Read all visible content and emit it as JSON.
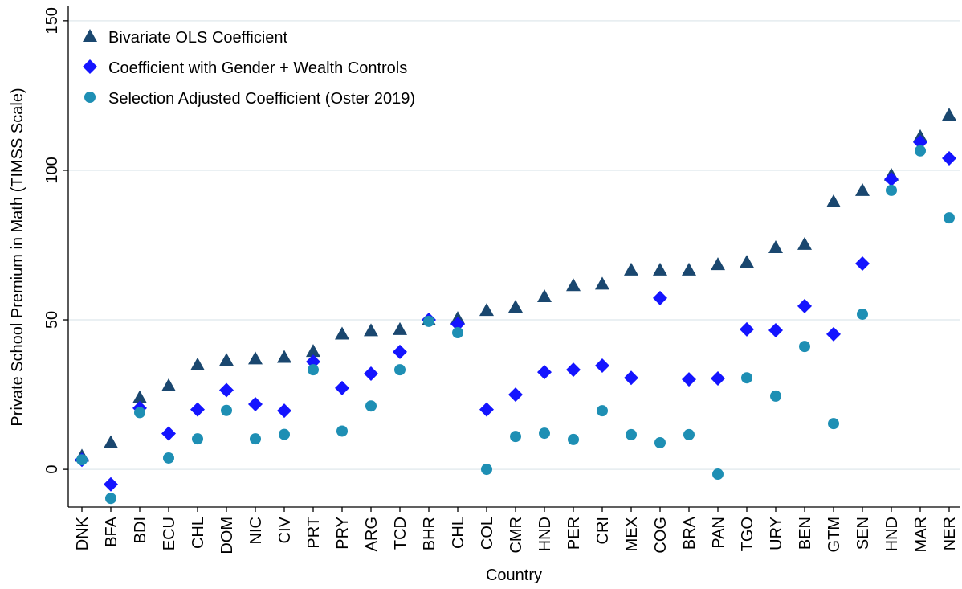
{
  "chart_data": {
    "type": "scatter",
    "x_label": "Country",
    "y_label": "Private School Premium in Math (TIMSS Scale)",
    "categories": [
      "DNK",
      "BFA",
      "BDI",
      "ECU",
      "CHL",
      "DOM",
      "NIC",
      "CIV",
      "PRT",
      "PRY",
      "ARG",
      "TCD",
      "BHR",
      "CHL",
      "COL",
      "CMR",
      "HND",
      "PER",
      "CRI",
      "MEX",
      "COG",
      "BRA",
      "PAN",
      "TGO",
      "URY",
      "BEN",
      "GTM",
      "SEN",
      "HND",
      "MAR",
      "NER"
    ],
    "series": [
      {
        "name": "Bivariate OLS Coefficient",
        "color": "#1a476f",
        "marker": "triangle",
        "values": [
          4.5,
          9,
          24,
          28,
          35,
          36.5,
          37,
          37.5,
          39.5,
          45.3,
          46.4,
          46.8,
          50,
          50.5,
          53.2,
          54.3,
          57.8,
          61.5,
          62,
          66.7,
          66.7,
          66.7,
          68.5,
          69.3,
          74.2,
          75.3,
          89.5,
          93.3,
          98.4,
          111.3,
          118.5
        ]
      },
      {
        "name": "Coefficient with Gender + Wealth Controls",
        "color": "#1414ff",
        "marker": "diamond",
        "values": [
          3.2,
          -5,
          20.5,
          12,
          20,
          26.5,
          21.8,
          19.6,
          36,
          27.2,
          32,
          39.3,
          50,
          48.6,
          20,
          25,
          32.5,
          33.3,
          34.7,
          30.6,
          57.3,
          30.1,
          30.4,
          46.8,
          46.5,
          54.6,
          45.2,
          68.8,
          97,
          109.4,
          104
        ]
      },
      {
        "name": "Selection Adjusted Coefficient (Oster 2019)",
        "color": "#1e8fb4",
        "marker": "circle",
        "values": [
          3.2,
          -9.7,
          19,
          3.8,
          10.2,
          19.7,
          10.2,
          11.7,
          33.3,
          12.8,
          21.2,
          33.3,
          49.5,
          45.7,
          0,
          11,
          12.1,
          10,
          19.6,
          11.6,
          8.9,
          11.6,
          -1.6,
          30.6,
          24.5,
          41.1,
          15.3,
          51.9,
          93.3,
          106.5,
          84.1
        ]
      }
    ],
    "ylim": [
      -12.6,
      154.8
    ],
    "yticks": [
      0,
      50,
      100,
      150
    ],
    "grid": true,
    "legend": "upper left"
  }
}
